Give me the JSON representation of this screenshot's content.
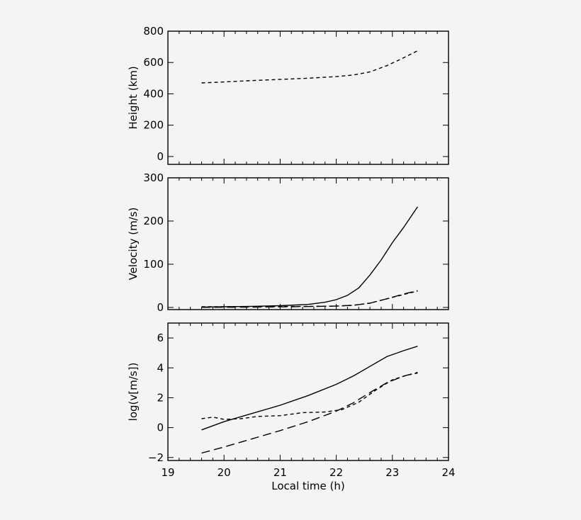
{
  "chart_data": [
    {
      "type": "line",
      "ylabel": "Height (km)",
      "xlim": [
        19,
        24
      ],
      "ylim": [
        -50,
        800
      ],
      "x_ticks": [
        19,
        20,
        21,
        22,
        23,
        24
      ],
      "y_ticks": [
        0,
        200,
        400,
        600,
        800
      ],
      "show_x_tick_labels": false,
      "series": [
        {
          "style": "short-dash",
          "x": [
            19.6,
            20.0,
            20.5,
            21.0,
            21.5,
            22.0,
            22.3,
            22.6,
            22.9,
            23.2,
            23.45
          ],
          "y": [
            470,
            476,
            485,
            492,
            500,
            510,
            520,
            540,
            580,
            630,
            675
          ]
        }
      ]
    },
    {
      "type": "line",
      "ylabel": "Velocity (m/s)",
      "xlim": [
        19,
        24
      ],
      "ylim": [
        -5,
        300
      ],
      "x_ticks": [
        19,
        20,
        21,
        22,
        23,
        24
      ],
      "y_ticks": [
        0,
        100,
        200,
        300
      ],
      "show_x_tick_labels": false,
      "series": [
        {
          "style": "solid",
          "x": [
            19.6,
            20.0,
            20.5,
            21.0,
            21.5,
            21.8,
            22.0,
            22.2,
            22.4,
            22.6,
            22.8,
            23.0,
            23.2,
            23.45
          ],
          "y": [
            0.8,
            1.5,
            2.5,
            4,
            7,
            12,
            18,
            28,
            45,
            75,
            110,
            150,
            185,
            233
          ]
        },
        {
          "style": "short-dash",
          "x": [
            19.6,
            20.0,
            20.5,
            21.0,
            21.5,
            22.0,
            22.3,
            22.6,
            22.9,
            23.2,
            23.45
          ],
          "y": [
            1.8,
            1.7,
            1.9,
            2.1,
            2.4,
            3.0,
            5,
            10,
            20,
            30,
            38
          ]
        },
        {
          "style": "long-dash",
          "x": [
            19.6,
            20.0,
            20.5,
            21.0,
            21.5,
            22.0,
            22.3,
            22.6,
            22.9,
            23.2,
            23.45
          ],
          "y": [
            0.2,
            0.4,
            0.8,
            1.3,
            2.0,
            3.2,
            5,
            10,
            20,
            31,
            39
          ]
        }
      ]
    },
    {
      "type": "line",
      "ylabel": "log(v[m/s])",
      "xlabel": "Local time (h)",
      "xlim": [
        19,
        24
      ],
      "ylim": [
        -2.2,
        7
      ],
      "x_ticks": [
        19,
        20,
        21,
        22,
        23,
        24
      ],
      "y_ticks": [
        -2,
        0,
        2,
        4,
        6
      ],
      "show_x_tick_labels": true,
      "series": [
        {
          "style": "solid",
          "x": [
            19.6,
            20.0,
            20.5,
            21.0,
            21.5,
            22.0,
            22.3,
            22.6,
            22.9,
            23.2,
            23.45
          ],
          "y": [
            -0.15,
            0.4,
            0.95,
            1.5,
            2.15,
            2.9,
            3.45,
            4.1,
            4.75,
            5.15,
            5.45
          ]
        },
        {
          "style": "short-dash",
          "x": [
            19.6,
            19.8,
            20.0,
            20.3,
            20.6,
            21.0,
            21.4,
            21.8,
            22.1,
            22.4,
            22.7,
            23.0,
            23.25,
            23.45
          ],
          "y": [
            0.6,
            0.7,
            0.55,
            0.6,
            0.75,
            0.8,
            1.0,
            1.05,
            1.2,
            1.7,
            2.5,
            3.2,
            3.5,
            3.65
          ]
        },
        {
          "style": "long-dash",
          "x": [
            19.6,
            20.0,
            20.5,
            21.0,
            21.5,
            22.0,
            22.3,
            22.6,
            22.9,
            23.2,
            23.45
          ],
          "y": [
            -1.7,
            -1.3,
            -0.75,
            -0.2,
            0.4,
            1.1,
            1.65,
            2.35,
            3.0,
            3.45,
            3.7
          ]
        }
      ]
    }
  ]
}
